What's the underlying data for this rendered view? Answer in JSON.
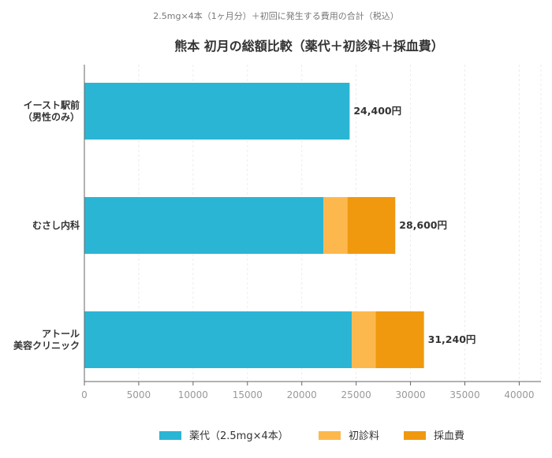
{
  "chart_data": {
    "type": "bar",
    "orientation": "horizontal",
    "stacked": true,
    "subtitle": "2.5mg×4本（1ヶ月分）＋初回に発生する費用の合計（税込）",
    "title": "熊本 初月の総額比較（薬代＋初診料＋採血費）",
    "categories": [
      [
        "イースト駅前",
        "（男性のみ）"
      ],
      [
        "むさし内科"
      ],
      [
        "アトール",
        "美容クリニック"
      ]
    ],
    "series": [
      {
        "name": "薬代（2.5mg×4本）",
        "color": "#2bb5d4",
        "values": [
          24400,
          22000,
          24600
        ]
      },
      {
        "name": "初診料",
        "color": "#fdb84d",
        "values": [
          0,
          2200,
          2200
        ]
      },
      {
        "name": "採血費",
        "color": "#f0990f",
        "values": [
          0,
          4400,
          4440
        ]
      }
    ],
    "totals": [
      "24,400円",
      "28,600円",
      "31,240円"
    ],
    "xlim": [
      0,
      42000
    ],
    "xticks": [
      0,
      5000,
      10000,
      15000,
      20000,
      25000,
      30000,
      35000,
      40000
    ],
    "grid": true,
    "legend_position": "bottom"
  }
}
